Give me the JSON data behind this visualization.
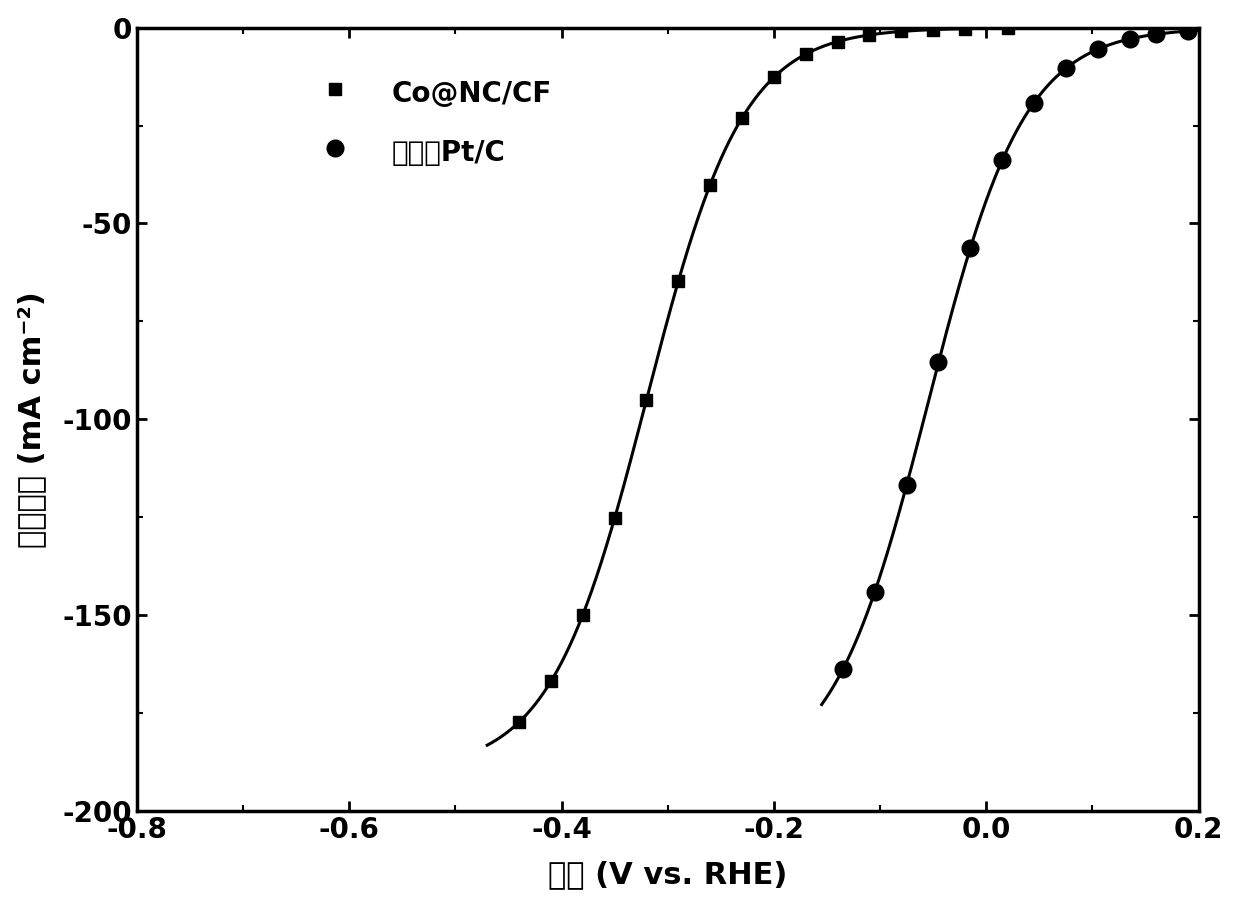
{
  "title": "",
  "xlabel": "电势 (V vs. RHE)",
  "ylabel": "电流密度 (mA cm⁻²)",
  "xlim": [
    -0.8,
    0.2
  ],
  "ylim": [
    -200,
    0
  ],
  "xticks": [
    -0.8,
    -0.6,
    -0.4,
    -0.2,
    0.0,
    0.2
  ],
  "yticks": [
    0,
    -50,
    -100,
    -150,
    -200
  ],
  "line_color": "#000000",
  "background_color": "#ffffff",
  "legend1_label": "Co@NC/CF",
  "legend2_label": "商业化Pt/C",
  "series1_marker": "s",
  "series2_marker": "o",
  "marker_size": 9,
  "linewidth": 2.2,
  "tick_fontsize": 20,
  "label_fontsize": 22,
  "curve1_jlim": -190,
  "curve1_x0": -0.32,
  "curve1_k": 22,
  "curve1_xstart": -0.47,
  "curve2_jlim": -192,
  "curve2_x0": -0.055,
  "curve2_k": 22,
  "curve2_xstart": -0.155,
  "s1_marker_x": [
    -0.44,
    -0.41,
    -0.38,
    -0.35,
    -0.32,
    -0.29,
    -0.26,
    -0.23,
    -0.2,
    -0.17,
    -0.14,
    -0.11,
    -0.08,
    -0.05,
    -0.02,
    0.02
  ],
  "s2_marker_x": [
    -0.135,
    -0.105,
    -0.075,
    -0.045,
    -0.015,
    0.015,
    0.045,
    0.075,
    0.105,
    0.135,
    0.16,
    0.19
  ]
}
